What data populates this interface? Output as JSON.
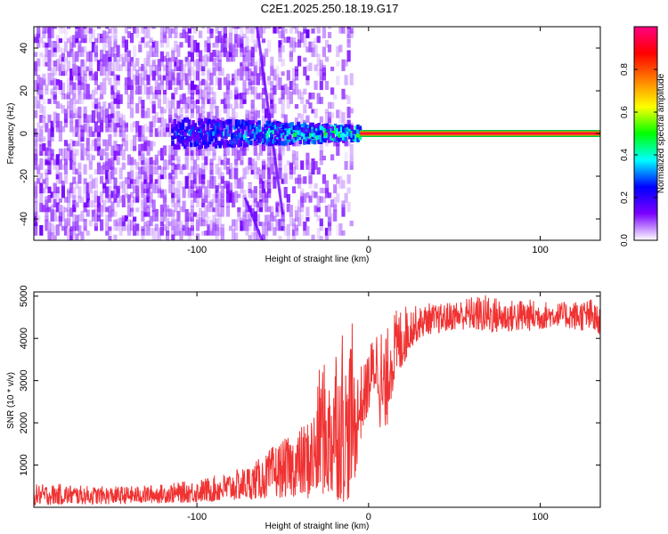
{
  "title": "C2E1.2025.250.18.19.G17",
  "chart_data": [
    {
      "type": "heatmap",
      "panel": "spectrogram",
      "xlabel": "Height of straight line (km)",
      "ylabel": "Frequency (Hz)",
      "xlim": [
        -195,
        135
      ],
      "ylim": [
        -50,
        50
      ],
      "xticks": [
        -100,
        0,
        100
      ],
      "xtick_labels": [
        "-100",
        "0",
        "100"
      ],
      "yticks": [
        -40,
        -20,
        0,
        20,
        40
      ],
      "ytick_labels": [
        "-40",
        "-20",
        "0",
        "20",
        "40"
      ],
      "features": {
        "carrier_line": {
          "x_from": -5,
          "x_to": 135,
          "frequency_hz": 0
        },
        "high_power_blob": {
          "x_from": -115,
          "x_to": -5,
          "frequency_spread_hz": 7
        },
        "noise_region": {
          "x_from": -195,
          "x_to": -10,
          "frequency_spread_hz": 50
        },
        "diagonal_streaks": [
          {
            "x_start": -65,
            "f_start": 50,
            "x_end": -50,
            "f_end": -38
          },
          {
            "x_start": -72,
            "f_start": -30,
            "x_end": -62,
            "f_end": -50
          }
        ]
      },
      "colorbar": {
        "label": "Normalized spectral amplitude",
        "ticks": [
          0.0,
          0.2,
          0.4,
          0.6,
          0.8
        ],
        "tick_labels": [
          "0.0",
          "0.2",
          "0.4",
          "0.6",
          "0.8"
        ],
        "range": [
          0,
          1
        ],
        "colors": [
          "#ffffff",
          "#7a00ff",
          "#0000ff",
          "#00ffff",
          "#00ff00",
          "#ffff00",
          "#ff8000",
          "#ff0000",
          "#ff0080"
        ]
      }
    },
    {
      "type": "line",
      "panel": "snr",
      "xlabel": "Height of straight line (km)",
      "ylabel": "SNR (10 * v/v)",
      "xlim": [
        -195,
        135
      ],
      "ylim": [
        0,
        5100
      ],
      "xticks": [
        -100,
        0,
        100
      ],
      "xtick_labels": [
        "-100",
        "0",
        "100"
      ],
      "yticks": [
        1000,
        2000,
        3000,
        4000,
        5000
      ],
      "ytick_labels": [
        "1000",
        "2000",
        "3000",
        "4000",
        "5000"
      ],
      "line_color": "#f03232",
      "series": [
        {
          "name": "SNR envelope",
          "x": [
            -195,
            -180,
            -160,
            -140,
            -120,
            -100,
            -90,
            -80,
            -70,
            -60,
            -55,
            -50,
            -45,
            -40,
            -35,
            -30,
            -28,
            -25,
            -22,
            -20,
            -17,
            -15,
            -12,
            -10,
            -8,
            -5,
            -2,
            0,
            2,
            5,
            8,
            10,
            12,
            15,
            20,
            25,
            30,
            35,
            40,
            50,
            60,
            70,
            80,
            90,
            100,
            110,
            120,
            130,
            135
          ],
          "low": [
            50,
            60,
            70,
            80,
            100,
            110,
            120,
            150,
            180,
            200,
            220,
            230,
            250,
            230,
            180,
            150,
            300,
            250,
            100,
            200,
            150,
            100,
            150,
            200,
            600,
            1500,
            2000,
            2200,
            2500,
            2800,
            1200,
            1500,
            2400,
            2800,
            3300,
            3800,
            4000,
            4100,
            4100,
            4200,
            4200,
            4100,
            4150,
            4150,
            4200,
            4300,
            4200,
            4150,
            4000
          ],
          "high": [
            550,
            550,
            500,
            500,
            550,
            650,
            750,
            850,
            1000,
            1250,
            1500,
            1600,
            1700,
            1900,
            2100,
            2600,
            3800,
            3300,
            3100,
            4500,
            3500,
            4600,
            3000,
            4700,
            3200,
            3400,
            3400,
            3800,
            4000,
            4300,
            4400,
            4000,
            4500,
            4650,
            4800,
            4800,
            4750,
            4850,
            4800,
            4900,
            5000,
            5050,
            4900,
            4950,
            4900,
            4850,
            4900,
            4950,
            4700
          ]
        }
      ]
    }
  ]
}
